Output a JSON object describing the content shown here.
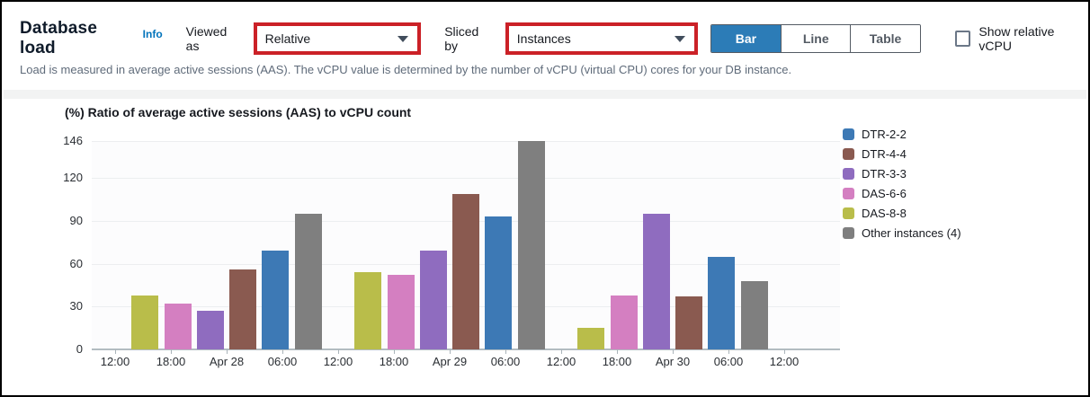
{
  "header": {
    "title": "Database load",
    "info_label": "Info",
    "viewed_as_label": "Viewed as",
    "viewed_as_value": "Relative",
    "sliced_by_label": "Sliced by",
    "sliced_by_value": "Instances",
    "view_toggle": {
      "options": [
        "Bar",
        "Line",
        "Table"
      ],
      "selected": "Bar"
    },
    "checkbox_label": "Show relative vCPU",
    "checkbox_checked": false,
    "description": "Load is measured in average active sessions (AAS). The vCPU value is determined by the number of vCPU (virtual CPU) cores for your DB instance."
  },
  "colors": {
    "annotation_red": "#cb2127",
    "selected_toggle_blue": "#2c7cb7",
    "link_blue": "#0073bb"
  },
  "chart_data": {
    "type": "bar",
    "title": "(%) Ratio of average active sessions (AAS) to vCPU count",
    "ylabel": "",
    "xlabel": "",
    "ylim": [
      0,
      146
    ],
    "y_ticks": [
      0,
      30,
      60,
      90,
      120,
      146
    ],
    "grid": "horizontal",
    "legend_position": "right",
    "x_tick_labels": [
      "12:00",
      "18:00",
      "Apr 28",
      "06:00",
      "12:00",
      "18:00",
      "Apr 29",
      "06:00",
      "12:00",
      "18:00",
      "Apr 30",
      "06:00",
      "12:00"
    ],
    "group_tick_indices": [
      2,
      6,
      10
    ],
    "group_labels": [
      "Apr 28",
      "Apr 29",
      "Apr 30"
    ],
    "series": [
      {
        "name": "DTR-2-2",
        "color": "#3d79b5",
        "values": [
          69,
          93,
          65
        ]
      },
      {
        "name": "DTR-4-4",
        "color": "#8a5a50",
        "values": [
          56,
          109,
          37
        ]
      },
      {
        "name": "DTR-3-3",
        "color": "#8f6cbf",
        "values": [
          27,
          69,
          95
        ]
      },
      {
        "name": "DAS-6-6",
        "color": "#d47fc1",
        "values": [
          32,
          52,
          38
        ]
      },
      {
        "name": "DAS-8-8",
        "color": "#b9bd4a",
        "values": [
          38,
          54,
          15
        ]
      },
      {
        "name": "Other instances (4)",
        "color": "#7f7f7f",
        "values": [
          95,
          146,
          48
        ]
      }
    ],
    "bar_order": [
      "DAS-8-8",
      "DAS-6-6",
      "DTR-3-3",
      "DTR-4-4",
      "DTR-2-2",
      "Other instances (4)"
    ]
  }
}
